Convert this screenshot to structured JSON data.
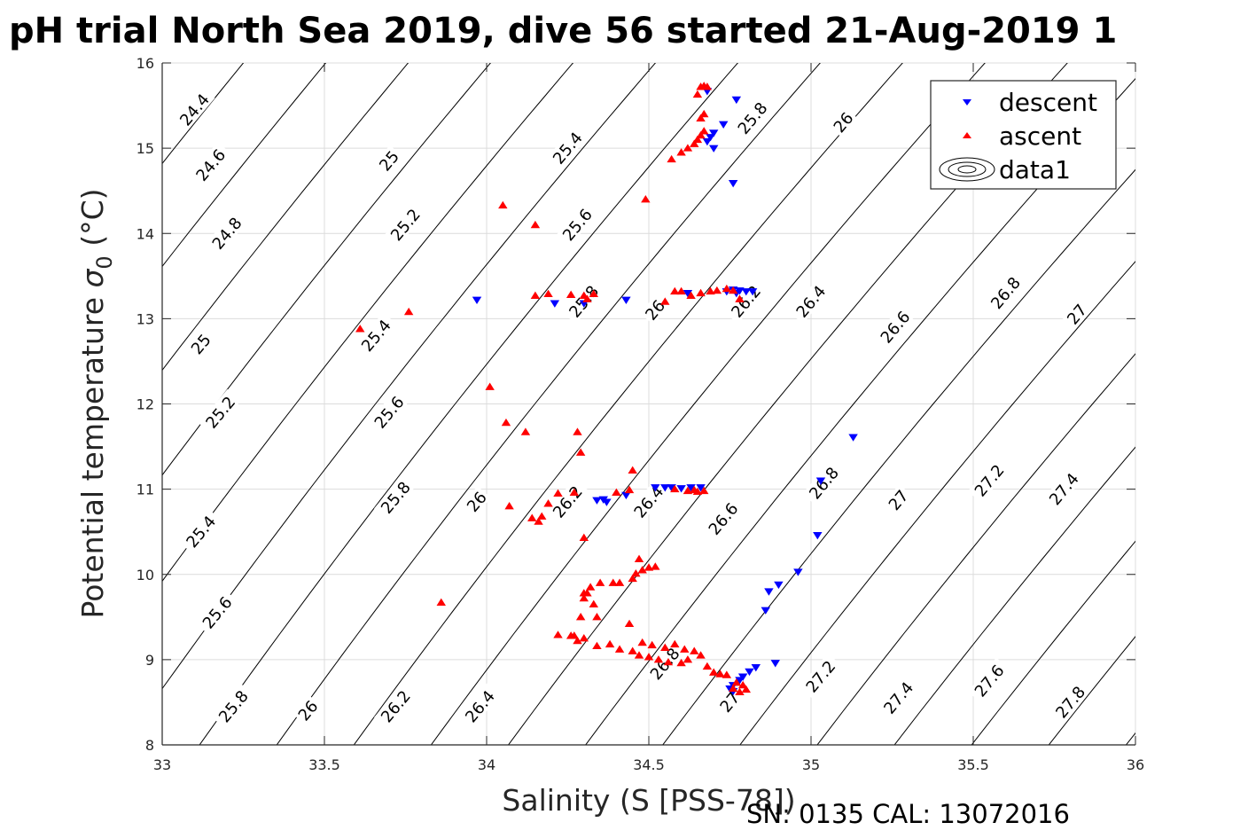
{
  "chart_data": {
    "type": "scatter",
    "title": "pH trial North Sea 2019, dive 56 started 21-Aug-2019 1",
    "xlabel": "Salinity (S [PSS-78])",
    "ylabel_main": "Potential temperature ",
    "ylabel_sigma": "σ",
    "ylabel_sub": "0",
    "ylabel_unit": " (°C)",
    "footnote": "SN: 0135  CAL: 13072016",
    "xlim": [
      33,
      36
    ],
    "ylim": [
      8,
      16
    ],
    "xticks": [
      33,
      33.5,
      34,
      34.5,
      35,
      35.5,
      36
    ],
    "xtick_labels": [
      "33",
      "33.5",
      "34",
      "34.5",
      "35",
      "35.5",
      "36"
    ],
    "yticks": [
      8,
      9,
      10,
      11,
      12,
      13,
      14,
      15,
      16
    ],
    "ytick_labels": [
      "8",
      "9",
      "10",
      "11",
      "12",
      "13",
      "14",
      "15",
      "16"
    ],
    "grid": true,
    "legend_position": "top-right",
    "legend": [
      {
        "name": "descent",
        "marker": "triangle-down",
        "color": "#0000ff"
      },
      {
        "name": "ascent",
        "marker": "triangle-up",
        "color": "#ff0000"
      },
      {
        "name": "data1",
        "marker": "contour",
        "color": "#000000"
      }
    ],
    "contours": {
      "name": "data1",
      "levels": [
        24.4,
        24.6,
        24.8,
        25,
        25.2,
        25.4,
        25.6,
        25.8,
        26,
        26.2,
        26.4,
        26.6,
        26.8,
        27,
        27.2,
        27.4,
        27.6,
        27.8
      ],
      "labels": [
        {
          "level": "24.4",
          "s": 33.1,
          "t": 15.45
        },
        {
          "level": "24.6",
          "s": 33.15,
          "t": 14.8
        },
        {
          "level": "24.8",
          "s": 33.2,
          "t": 14.0
        },
        {
          "level": "25",
          "s": 33.12,
          "t": 12.7
        },
        {
          "level": "25.2",
          "s": 33.18,
          "t": 11.9
        },
        {
          "level": "25.4",
          "s": 33.12,
          "t": 10.5
        },
        {
          "level": "25.6",
          "s": 33.17,
          "t": 9.55
        },
        {
          "level": "25.8",
          "s": 33.22,
          "t": 8.45
        },
        {
          "level": "26",
          "s": 33.45,
          "t": 8.4
        },
        {
          "level": "26.2",
          "s": 33.72,
          "t": 8.45
        },
        {
          "level": "26.4",
          "s": 33.98,
          "t": 8.45
        },
        {
          "level": "25",
          "s": 33.7,
          "t": 14.85
        },
        {
          "level": "25.2",
          "s": 33.75,
          "t": 14.1
        },
        {
          "level": "25.4",
          "s": 33.66,
          "t": 12.8
        },
        {
          "level": "25.6",
          "s": 33.7,
          "t": 11.9
        },
        {
          "level": "25.8",
          "s": 33.72,
          "t": 10.9
        },
        {
          "level": "26",
          "s": 33.97,
          "t": 10.85
        },
        {
          "level": "25.4",
          "s": 34.25,
          "t": 15.0
        },
        {
          "level": "25.6",
          "s": 34.28,
          "t": 14.1
        },
        {
          "level": "25.8",
          "s": 34.3,
          "t": 13.2
        },
        {
          "level": "26",
          "s": 34.52,
          "t": 13.1
        },
        {
          "level": "26.2",
          "s": 34.25,
          "t": 10.85
        },
        {
          "level": "26.4",
          "s": 34.5,
          "t": 10.85
        },
        {
          "level": "26.6",
          "s": 34.73,
          "t": 10.65
        },
        {
          "level": "26.8",
          "s": 34.55,
          "t": 8.95
        },
        {
          "level": "27",
          "s": 34.75,
          "t": 8.5
        },
        {
          "level": "25.8",
          "s": 34.82,
          "t": 15.35
        },
        {
          "level": "26",
          "s": 35.1,
          "t": 15.3
        },
        {
          "level": "26.2",
          "s": 34.8,
          "t": 13.2
        },
        {
          "level": "26.4",
          "s": 35.0,
          "t": 13.2
        },
        {
          "level": "26.6",
          "s": 35.26,
          "t": 12.9
        },
        {
          "level": "26.8",
          "s": 35.04,
          "t": 11.07
        },
        {
          "level": "27",
          "s": 35.27,
          "t": 10.87
        },
        {
          "level": "27.2",
          "s": 35.03,
          "t": 8.8
        },
        {
          "level": "27.4",
          "s": 35.27,
          "t": 8.55
        },
        {
          "level": "26.8",
          "s": 35.6,
          "t": 13.3
        },
        {
          "level": "27",
          "s": 35.82,
          "t": 13.05
        },
        {
          "level": "27.2",
          "s": 35.55,
          "t": 11.1
        },
        {
          "level": "27.4",
          "s": 35.78,
          "t": 11.0
        },
        {
          "level": "27.6",
          "s": 35.55,
          "t": 8.75
        },
        {
          "level": "27.8",
          "s": 35.8,
          "t": 8.5
        }
      ]
    },
    "series": [
      {
        "name": "descent",
        "marker": "triangle-down",
        "color": "#0000ff",
        "points": [
          [
            34.68,
            15.67
          ],
          [
            34.77,
            15.57
          ],
          [
            34.73,
            15.28
          ],
          [
            34.7,
            15.18
          ],
          [
            34.69,
            15.13
          ],
          [
            34.68,
            15.08
          ],
          [
            34.7,
            15.0
          ],
          [
            34.76,
            14.59
          ],
          [
            33.97,
            13.22
          ],
          [
            34.21,
            13.18
          ],
          [
            34.3,
            13.18
          ],
          [
            34.43,
            13.22
          ],
          [
            34.62,
            13.3
          ],
          [
            34.74,
            13.32
          ],
          [
            34.76,
            13.34
          ],
          [
            34.78,
            13.33
          ],
          [
            34.8,
            13.32
          ],
          [
            34.82,
            13.32
          ],
          [
            34.77,
            13.3
          ],
          [
            35.13,
            11.61
          ],
          [
            35.03,
            11.1
          ],
          [
            34.34,
            10.87
          ],
          [
            34.36,
            10.88
          ],
          [
            34.37,
            10.85
          ],
          [
            34.43,
            10.93
          ],
          [
            34.52,
            11.02
          ],
          [
            34.55,
            11.02
          ],
          [
            34.57,
            11.02
          ],
          [
            34.6,
            11.01
          ],
          [
            34.63,
            11.02
          ],
          [
            34.66,
            11.02
          ],
          [
            35.02,
            10.46
          ],
          [
            34.96,
            10.03
          ],
          [
            34.9,
            9.88
          ],
          [
            34.87,
            9.8
          ],
          [
            34.86,
            9.58
          ],
          [
            34.89,
            8.96
          ],
          [
            34.83,
            8.91
          ],
          [
            34.81,
            8.86
          ],
          [
            34.79,
            8.8
          ],
          [
            34.78,
            8.76
          ],
          [
            34.76,
            8.7
          ],
          [
            34.75,
            8.66
          ],
          [
            34.76,
            8.63
          ]
        ]
      },
      {
        "name": "ascent",
        "marker": "triangle-up",
        "color": "#ff0000",
        "points": [
          [
            34.66,
            15.72
          ],
          [
            34.67,
            15.73
          ],
          [
            34.68,
            15.72
          ],
          [
            34.65,
            15.63
          ],
          [
            34.67,
            15.4
          ],
          [
            34.66,
            15.35
          ],
          [
            34.67,
            15.2
          ],
          [
            34.66,
            15.15
          ],
          [
            34.65,
            15.1
          ],
          [
            34.64,
            15.05
          ],
          [
            34.62,
            15.0
          ],
          [
            34.6,
            14.95
          ],
          [
            34.57,
            14.87
          ],
          [
            34.49,
            14.4
          ],
          [
            34.05,
            14.33
          ],
          [
            34.15,
            14.1
          ],
          [
            34.15,
            13.27
          ],
          [
            34.19,
            13.29
          ],
          [
            34.26,
            13.28
          ],
          [
            34.3,
            13.27
          ],
          [
            34.31,
            13.23
          ],
          [
            34.33,
            13.29
          ],
          [
            34.55,
            13.2
          ],
          [
            34.58,
            13.32
          ],
          [
            34.6,
            13.32
          ],
          [
            34.63,
            13.27
          ],
          [
            34.66,
            13.3
          ],
          [
            34.69,
            13.32
          ],
          [
            34.71,
            13.33
          ],
          [
            34.74,
            13.35
          ],
          [
            34.76,
            13.33
          ],
          [
            34.78,
            13.23
          ],
          [
            33.61,
            12.88
          ],
          [
            33.76,
            13.08
          ],
          [
            34.01,
            12.2
          ],
          [
            34.06,
            11.78
          ],
          [
            34.12,
            11.67
          ],
          [
            34.28,
            11.67
          ],
          [
            34.29,
            11.43
          ],
          [
            34.45,
            11.22
          ],
          [
            34.07,
            10.8
          ],
          [
            34.14,
            10.66
          ],
          [
            34.16,
            10.62
          ],
          [
            34.17,
            10.68
          ],
          [
            34.19,
            10.83
          ],
          [
            34.22,
            10.95
          ],
          [
            34.27,
            10.96
          ],
          [
            34.3,
            10.43
          ],
          [
            34.4,
            10.96
          ],
          [
            34.44,
            10.99
          ],
          [
            34.58,
            11.0
          ],
          [
            34.62,
            10.98
          ],
          [
            34.64,
            10.99
          ],
          [
            34.65,
            10.97
          ],
          [
            34.67,
            10.98
          ],
          [
            33.86,
            9.67
          ],
          [
            34.47,
            10.18
          ],
          [
            34.5,
            10.08
          ],
          [
            34.52,
            10.09
          ],
          [
            34.48,
            10.05
          ],
          [
            34.46,
            10.01
          ],
          [
            34.45,
            9.95
          ],
          [
            34.41,
            9.9
          ],
          [
            34.39,
            9.9
          ],
          [
            34.35,
            9.9
          ],
          [
            34.32,
            9.85
          ],
          [
            34.31,
            9.78
          ],
          [
            34.3,
            9.78
          ],
          [
            34.3,
            9.72
          ],
          [
            34.33,
            9.65
          ],
          [
            34.29,
            9.5
          ],
          [
            34.34,
            9.5
          ],
          [
            34.27,
            9.28
          ],
          [
            34.26,
            9.28
          ],
          [
            34.3,
            9.25
          ],
          [
            34.22,
            9.29
          ],
          [
            34.28,
            9.22
          ],
          [
            34.44,
            9.42
          ],
          [
            34.38,
            9.18
          ],
          [
            34.34,
            9.16
          ],
          [
            34.41,
            9.12
          ],
          [
            34.45,
            9.1
          ],
          [
            34.47,
            9.05
          ],
          [
            34.5,
            9.03
          ],
          [
            34.53,
            9.0
          ],
          [
            34.56,
            8.97
          ],
          [
            34.6,
            8.96
          ],
          [
            34.62,
            9.0
          ],
          [
            34.48,
            9.2
          ],
          [
            34.51,
            9.17
          ],
          [
            34.55,
            9.14
          ],
          [
            34.58,
            9.18
          ],
          [
            34.61,
            9.12
          ],
          [
            34.64,
            9.1
          ],
          [
            34.66,
            9.05
          ],
          [
            34.68,
            8.92
          ],
          [
            34.7,
            8.85
          ],
          [
            34.72,
            8.83
          ],
          [
            34.74,
            8.82
          ],
          [
            34.77,
            8.73
          ],
          [
            34.79,
            8.7
          ],
          [
            34.8,
            8.65
          ],
          [
            34.78,
            8.62
          ],
          [
            34.76,
            8.66
          ]
        ]
      }
    ]
  }
}
